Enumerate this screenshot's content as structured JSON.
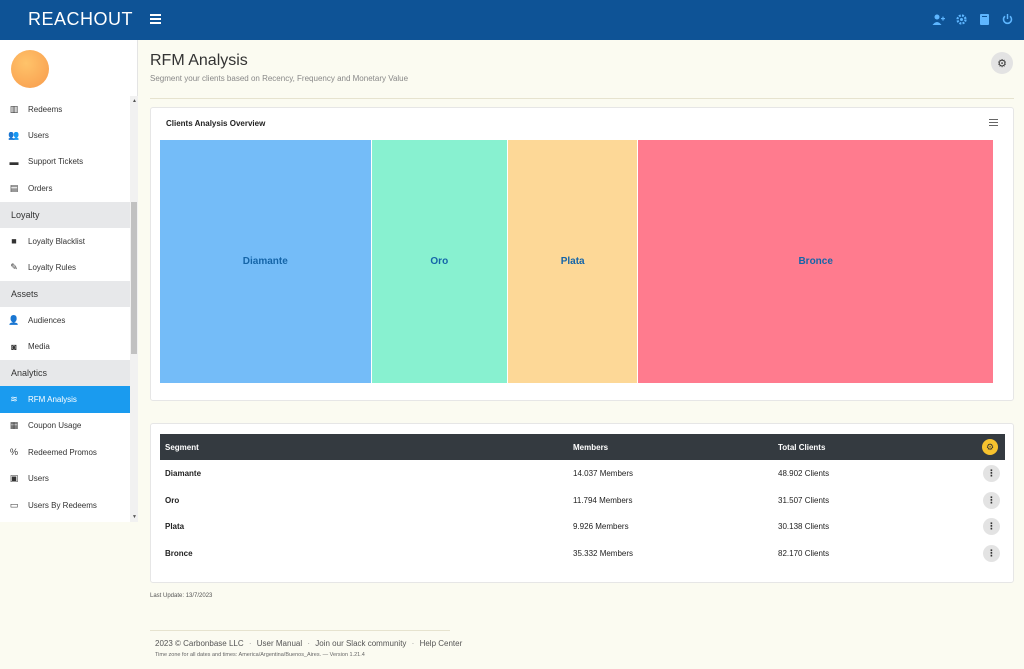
{
  "app": {
    "logo": "REACHOUT",
    "top_icons": [
      "user-plus-icon",
      "gear-icon",
      "book-icon",
      "power-icon"
    ]
  },
  "sidebar": {
    "items": [
      {
        "type": "item",
        "label": "Redeems",
        "icon": "barcode-icon"
      },
      {
        "type": "item",
        "label": "Users",
        "icon": "users-icon"
      },
      {
        "type": "item",
        "label": "Support Tickets",
        "icon": "ticket-icon"
      },
      {
        "type": "item",
        "label": "Orders",
        "icon": "receipt-icon"
      },
      {
        "type": "section",
        "label": "Loyalty"
      },
      {
        "type": "item",
        "label": "Loyalty Blacklist",
        "icon": "bag-icon"
      },
      {
        "type": "item",
        "label": "Loyalty Rules",
        "icon": "ruler-icon"
      },
      {
        "type": "section",
        "label": "Assets"
      },
      {
        "type": "item",
        "label": "Audiences",
        "icon": "user-gear-icon"
      },
      {
        "type": "item",
        "label": "Media",
        "icon": "camera-icon"
      },
      {
        "type": "section",
        "label": "Analytics"
      },
      {
        "type": "item",
        "label": "RFM Analysis",
        "icon": "layers-icon",
        "active": true
      },
      {
        "type": "item",
        "label": "Coupon Usage",
        "icon": "qr-icon"
      },
      {
        "type": "item",
        "label": "Redeemed Promos",
        "icon": "percent-icon"
      },
      {
        "type": "item",
        "label": "Users",
        "icon": "id-badge-icon"
      },
      {
        "type": "item",
        "label": "Users By Redeems",
        "icon": "id-card-icon"
      }
    ]
  },
  "page": {
    "title": "RFM Analysis",
    "subtitle": "Segment your clients based on Recency, Frequency and Monetary Value"
  },
  "chart_data": {
    "type": "treemap",
    "title": "Clients Analysis Overview",
    "cells": [
      {
        "label": "Diamante",
        "value": 48902,
        "color": "#74bcf8"
      },
      {
        "label": "Oro",
        "value": 31507,
        "color": "#88f1d0"
      },
      {
        "label": "Plata",
        "value": 30138,
        "color": "#fdd897"
      },
      {
        "label": "Bronce",
        "value": 82170,
        "color": "#ff7b8e"
      }
    ]
  },
  "table": {
    "headers": {
      "segment": "Segment",
      "members": "Members",
      "total": "Total Clients"
    },
    "rows": [
      {
        "segment": "Diamante",
        "members": "14.037 Members",
        "total": "48.902 Clients"
      },
      {
        "segment": "Oro",
        "members": "11.794 Members",
        "total": "31.507 Clients"
      },
      {
        "segment": "Plata",
        "members": "9.926 Members",
        "total": "30.138 Clients"
      },
      {
        "segment": "Bronce",
        "members": "35.332 Members",
        "total": "82.170 Clients"
      }
    ]
  },
  "last_update": "Last Update: 13/7/2023",
  "footer": {
    "copyright": "2023 © Carbonbase LLC",
    "links": [
      "User Manual",
      "Join our Slack community",
      "Help Center"
    ],
    "sub": "Time zone for all dates and times: America/Argentina/Buenos_Aires. — Version 1.21.4"
  }
}
